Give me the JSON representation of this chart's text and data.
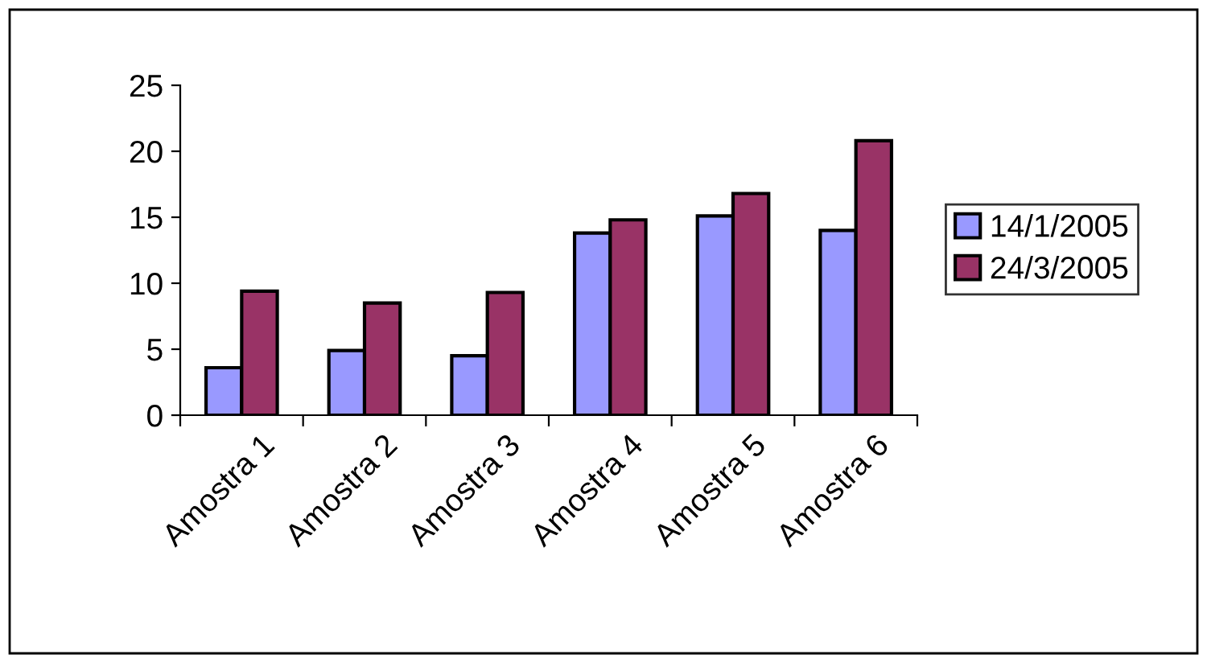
{
  "chart_data": {
    "type": "bar",
    "categories": [
      "Amostra 1",
      "Amostra 2",
      "Amostra 3",
      "Amostra 4",
      "Amostra 5",
      "Amostra 6"
    ],
    "series": [
      {
        "name": "14/1/2005",
        "color": "#9999ff",
        "values": [
          3.6,
          4.9,
          4.5,
          13.8,
          15.1,
          14.0
        ]
      },
      {
        "name": "24/3/2005",
        "color": "#993366",
        "values": [
          9.4,
          8.5,
          9.3,
          14.8,
          16.8,
          20.8
        ]
      }
    ],
    "ylim": [
      0,
      25
    ],
    "yticks": [
      0,
      5,
      10,
      15,
      20,
      25
    ],
    "grid": false,
    "legend": "right"
  }
}
